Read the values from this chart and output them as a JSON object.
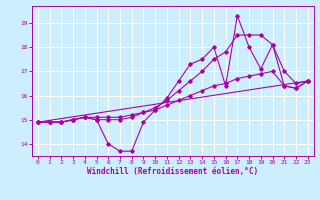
{
  "background_color": "#cceeff",
  "grid_color": "#ffffff",
  "line_color": "#aa00aa",
  "xlabel": "Windchill (Refroidissement éolien,°C)",
  "ylabel_ticks": [
    14,
    15,
    16,
    17,
    18,
    19
  ],
  "xlim": [
    -0.5,
    23.5
  ],
  "ylim": [
    13.5,
    19.7
  ],
  "xticks": [
    0,
    1,
    2,
    3,
    4,
    5,
    6,
    7,
    8,
    9,
    10,
    11,
    12,
    13,
    14,
    15,
    16,
    17,
    18,
    19,
    20,
    21,
    22,
    23
  ],
  "series": [
    {
      "x": [
        0,
        1,
        2,
        3,
        4,
        5,
        6,
        7,
        8,
        9,
        10,
        11,
        12,
        13,
        14,
        15,
        16,
        17,
        18,
        19,
        20,
        21,
        22,
        23
      ],
      "y": [
        14.9,
        14.9,
        14.9,
        15.0,
        15.1,
        15.0,
        14.0,
        13.7,
        13.7,
        14.9,
        15.4,
        15.9,
        16.6,
        17.3,
        17.5,
        18.0,
        16.4,
        19.3,
        18.0,
        17.1,
        18.1,
        16.4,
        16.3,
        16.6
      ]
    },
    {
      "x": [
        0,
        1,
        2,
        3,
        4,
        5,
        6,
        7,
        8,
        9,
        10,
        11,
        12,
        13,
        14,
        15,
        16,
        17,
        18,
        19,
        20,
        21,
        22,
        23
      ],
      "y": [
        14.9,
        14.9,
        14.9,
        15.0,
        15.1,
        15.1,
        15.1,
        15.1,
        15.2,
        15.3,
        15.4,
        15.6,
        15.8,
        16.0,
        16.2,
        16.4,
        16.5,
        16.7,
        16.8,
        16.9,
        17.0,
        16.4,
        16.3,
        16.6
      ]
    },
    {
      "x": [
        0,
        23
      ],
      "y": [
        14.9,
        16.6
      ]
    },
    {
      "x": [
        0,
        1,
        2,
        3,
        4,
        5,
        6,
        7,
        8,
        9,
        10,
        11,
        12,
        13,
        14,
        15,
        16,
        17,
        18,
        19,
        20,
        21,
        22,
        23
      ],
      "y": [
        14.9,
        14.9,
        14.9,
        15.0,
        15.1,
        15.0,
        15.0,
        15.0,
        15.1,
        15.3,
        15.5,
        15.8,
        16.2,
        16.6,
        17.0,
        17.5,
        17.8,
        18.5,
        18.5,
        18.5,
        18.1,
        17.0,
        16.5,
        16.6
      ]
    }
  ]
}
